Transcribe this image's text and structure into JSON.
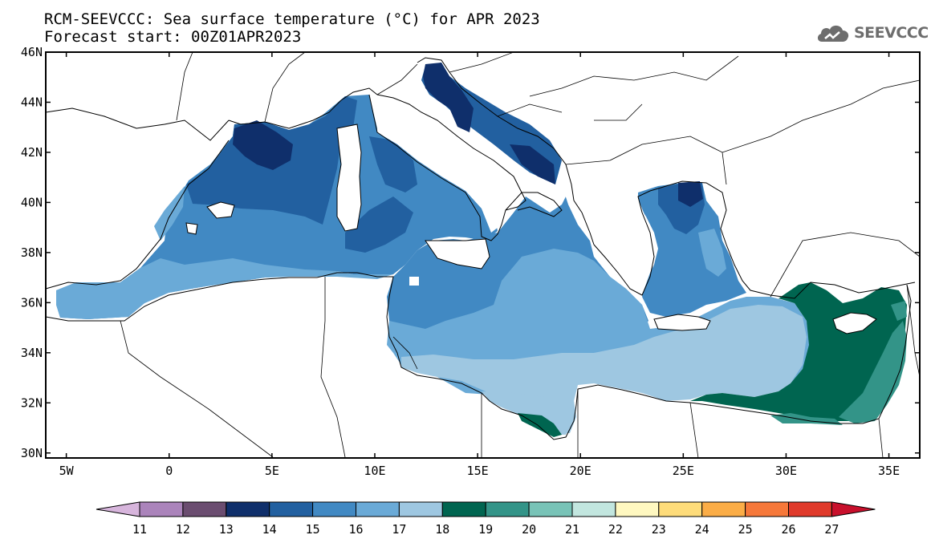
{
  "header": {
    "title": "RCM-SEEVCCC: Sea surface temperature (°C) for APR 2023",
    "subtitle": "Forecast start: 00Z01APR2023"
  },
  "logo": {
    "text": "SEEVCCC",
    "icon": "cloud-icon"
  },
  "map": {
    "region": "Mediterranean Sea",
    "lon_range": [
      -6,
      36.5
    ],
    "lat_range": [
      29.8,
      46
    ],
    "lon_ticks": [
      {
        "value": -5,
        "label": "5W"
      },
      {
        "value": 0,
        "label": "0"
      },
      {
        "value": 5,
        "label": "5E"
      },
      {
        "value": 10,
        "label": "10E"
      },
      {
        "value": 15,
        "label": "15E"
      },
      {
        "value": 20,
        "label": "20E"
      },
      {
        "value": 25,
        "label": "25E"
      },
      {
        "value": 30,
        "label": "30E"
      },
      {
        "value": 35,
        "label": "35E"
      }
    ],
    "lat_ticks": [
      {
        "value": 30,
        "label": "30N"
      },
      {
        "value": 32,
        "label": "32N"
      },
      {
        "value": 34,
        "label": "34N"
      },
      {
        "value": 36,
        "label": "36N"
      },
      {
        "value": 38,
        "label": "38N"
      },
      {
        "value": 40,
        "label": "40N"
      },
      {
        "value": 42,
        "label": "42N"
      },
      {
        "value": 44,
        "label": "44N"
      },
      {
        "value": 46,
        "label": "46N"
      }
    ]
  },
  "colorbar": {
    "levels": [
      "11",
      "12",
      "13",
      "14",
      "15",
      "16",
      "17",
      "18",
      "19",
      "20",
      "21",
      "22",
      "23",
      "24",
      "25",
      "26",
      "27"
    ],
    "colors": [
      "#d7b5dc",
      "#ab84bb",
      "#6b4d70",
      "#0f2f6b",
      "#2260a0",
      "#4189c3",
      "#6aaad7",
      "#9ec7e1",
      "#006550",
      "#339488",
      "#78c3b7",
      "#c2e6df",
      "#fff8c0",
      "#fedc7a",
      "#fbad47",
      "#f6783a",
      "#e03a2b",
      "#c8102c"
    ]
  },
  "legend_colors": {
    "sst_14": "#0f2f6b",
    "sst_15": "#2260a0",
    "sst_16": "#4189c3",
    "sst_17": "#6aaad7",
    "sst_18": "#9ec7e1",
    "sst_19": "#006550",
    "sst_20": "#339488"
  }
}
